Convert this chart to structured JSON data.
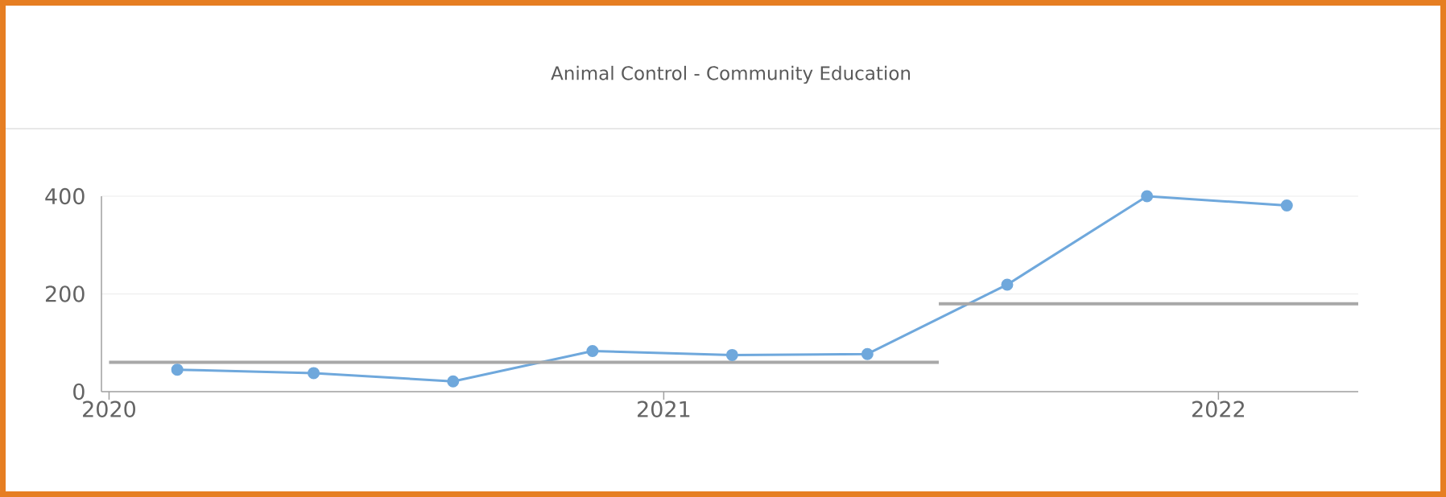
{
  "chart_data": {
    "type": "line",
    "title": "Animal Control - Community Education",
    "xlim": [
      "2019-12-27",
      "2022-04-03"
    ],
    "xticks": [
      "2020",
      "2021",
      "2022"
    ],
    "ylim": [
      0,
      400
    ],
    "yticks": [
      0,
      200,
      400
    ],
    "grid": "y",
    "series": [
      {
        "color": "#6fa8dc",
        "marker": "circle",
        "x": [
          "2020-02-15",
          "2020-05-15",
          "2020-08-15",
          "2020-11-15",
          "2021-02-15",
          "2021-05-15",
          "2021-08-15",
          "2021-11-15",
          "2022-02-15"
        ],
        "values": [
          45,
          38,
          21,
          83,
          75,
          77,
          219,
          400,
          381
        ]
      },
      {
        "color": "#a8a8a8",
        "marker": "none",
        "x": [
          "2020-01-01",
          "2021-07-01"
        ],
        "values": [
          60,
          60
        ]
      },
      {
        "color": "#a8a8a8",
        "marker": "none",
        "x": [
          "2021-07-01",
          "2022-04-03"
        ],
        "values": [
          180,
          180
        ]
      }
    ]
  }
}
